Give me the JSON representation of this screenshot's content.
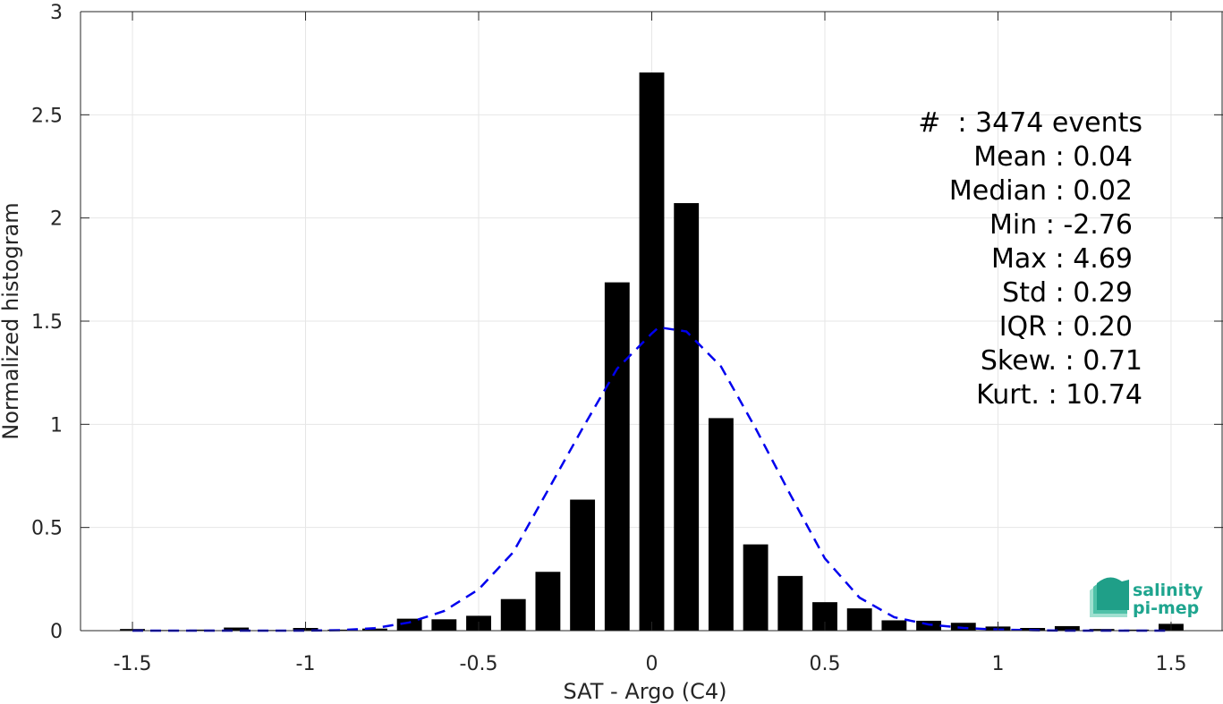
{
  "chart_data": {
    "type": "bar",
    "xlabel": "SAT - Argo (C4)",
    "ylabel": "Normalized histogram",
    "xlim": [
      -1.65,
      1.65
    ],
    "ylim": [
      0,
      3
    ],
    "xticks": [
      -1.5,
      -1,
      -0.5,
      0,
      0.5,
      1,
      1.5
    ],
    "xtick_labels": [
      "-1.5",
      "-1",
      "-0.5",
      "0",
      "0.5",
      "1",
      "1.5"
    ],
    "yticks": [
      0,
      0.5,
      1,
      1.5,
      2,
      2.5,
      3
    ],
    "ytick_labels": [
      "0",
      "0.5",
      "1",
      "1.5",
      "2",
      "2.5",
      "3"
    ],
    "grid": true,
    "bar_color": "#000000",
    "bar_width": 0.072,
    "bars": {
      "x": [
        -1.5,
        -1.4,
        -1.3,
        -1.2,
        -1.1,
        -1.0,
        -0.9,
        -0.8,
        -0.7,
        -0.6,
        -0.5,
        -0.4,
        -0.3,
        -0.2,
        -0.1,
        0.0,
        0.1,
        0.2,
        0.3,
        0.4,
        0.5,
        0.6,
        0.7,
        0.8,
        0.9,
        1.0,
        1.1,
        1.2,
        1.3,
        1.4,
        1.5
      ],
      "y": [
        0.008,
        0.003,
        0.005,
        0.015,
        0.003,
        0.013,
        0.005,
        0.01,
        0.058,
        0.055,
        0.072,
        0.153,
        0.285,
        0.635,
        1.688,
        2.705,
        2.072,
        1.03,
        0.418,
        0.265,
        0.138,
        0.108,
        0.05,
        0.048,
        0.038,
        0.02,
        0.013,
        0.022,
        0.008,
        0.005,
        0.033
      ]
    },
    "fit_curve": {
      "name": "",
      "style": "dashed",
      "color": "#0000ee",
      "x": [
        -1.5,
        -1.4,
        -1.3,
        -1.2,
        -1.1,
        -1.0,
        -0.9,
        -0.8,
        -0.7,
        -0.6,
        -0.5,
        -0.4,
        -0.3,
        -0.2,
        -0.1,
        0.0,
        0.02,
        0.1,
        0.2,
        0.3,
        0.4,
        0.5,
        0.6,
        0.7,
        0.8,
        0.9,
        1.0,
        1.1,
        1.2,
        1.3,
        1.4,
        1.5
      ],
      "y": [
        0.0,
        0.0,
        0.0,
        0.0,
        0.0,
        0.0,
        0.002,
        0.012,
        0.04,
        0.095,
        0.2,
        0.38,
        0.68,
        0.98,
        1.27,
        1.44,
        1.47,
        1.45,
        1.28,
        0.98,
        0.66,
        0.35,
        0.16,
        0.065,
        0.03,
        0.013,
        0.005,
        0.002,
        0.0,
        0.0,
        0.0,
        0.0
      ]
    },
    "stats": [
      "#  : 3474 events",
      "Mean : 0.04",
      "Median : 0.02",
      "Min : -2.76",
      "Max : 4.69",
      "Std : 0.29",
      "IQR : 0.20",
      "Skew. : 0.71",
      "Kurt. : 10.74"
    ]
  },
  "logo": {
    "line1": "salinity",
    "line2": "pi-mep",
    "color": "#1fa58f"
  }
}
